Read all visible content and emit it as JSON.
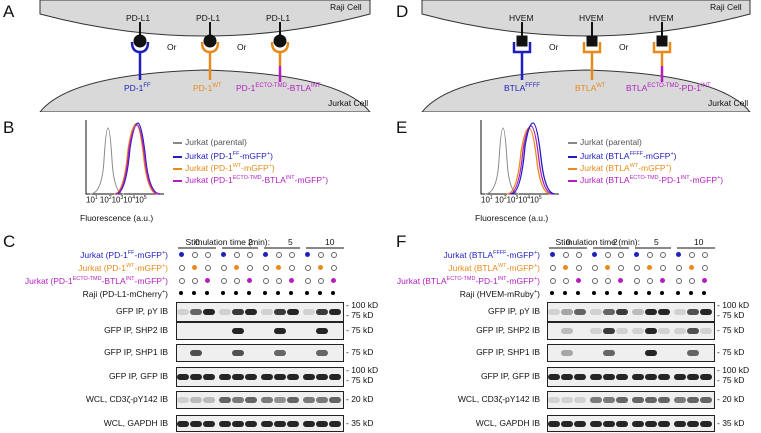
{
  "panels": {
    "A": "A",
    "B": "B",
    "C": "C",
    "D": "D",
    "E": "E",
    "F": "F"
  },
  "schematic_left": {
    "top_cell": "Raji Cell",
    "bottom_cell": "Jurkat Cell",
    "ligands": [
      "PD-L1",
      "PD-L1",
      "PD-L1"
    ],
    "or": "Or",
    "receptors": [
      {
        "base": "PD-1",
        "sup": "FF",
        "tail": "",
        "tailsup": "",
        "color": "#1f1fbf"
      },
      {
        "base": "PD-1",
        "sup": "WT",
        "tail": "",
        "tailsup": "",
        "color": "#e88a1a"
      },
      {
        "base": "PD-1",
        "sup": "ECTO-TMD",
        "tail": "-BTLA",
        "tailsup": "INT",
        "color": "#b21fbf"
      }
    ]
  },
  "schematic_right": {
    "top_cell": "Raji Cell",
    "bottom_cell": "Jurkat Cell",
    "ligands": [
      "HVEM",
      "HVEM",
      "HVEM"
    ],
    "or": "Or",
    "receptors": [
      {
        "base": "BTLA",
        "sup": "FFFF",
        "tail": "",
        "tailsup": "",
        "color": "#1f1fbf"
      },
      {
        "base": "BTLA",
        "sup": "WT",
        "tail": "",
        "tailsup": "",
        "color": "#e88a1a"
      },
      {
        "base": "BTLA",
        "sup": "ECTO-TMD",
        "tail": "-PD-1",
        "tailsup": "INT",
        "color": "#b21fbf"
      }
    ]
  },
  "flow_left": {
    "xlabel": "Fluorescence (a.u.)",
    "ticks": [
      "10",
      "1",
      "10",
      "2",
      "10",
      "3",
      "10",
      "4",
      "10",
      "5"
    ],
    "legend": [
      {
        "text": "Jurkat (parental)",
        "color": "#888888"
      },
      {
        "text": "Jurkat (PD-1FF-mGFP+)",
        "color": "#1f1fbf"
      },
      {
        "text": "Jurkat (PD-1WT-mGFP+)",
        "color": "#e88a1a"
      },
      {
        "text": "Jurkat (PD-1ECTO-TMD-BTLAINT-mGFP+)",
        "color": "#b21fbf"
      }
    ]
  },
  "flow_right": {
    "xlabel": "Fluorescence (a.u.)",
    "legend": [
      {
        "text": "Jurkat (parental)",
        "color": "#888888"
      },
      {
        "text": "Jurkat (BTLAFFFF-mGFP+)",
        "color": "#1f1fbf"
      },
      {
        "text": "Jurkat (BTLAWT-mGFP+)",
        "color": "#e88a1a"
      },
      {
        "text": "Jurkat (BTLAECTO-TMD-PD-1INT-mGFP+)",
        "color": "#b21fbf"
      }
    ]
  },
  "blot_left": {
    "stim_label": "Stimulation time (min):",
    "times": [
      "0",
      "2",
      "5",
      "10"
    ],
    "conditions": [
      {
        "text": "Jurkat (PD-1FF-mGFP+)",
        "color": "#1f1fbf"
      },
      {
        "text": "Jurkat (PD-1WT-mGFP+)",
        "color": "#e88a1a"
      },
      {
        "text": "Jurkat (PD-1ECTO-TMD-BTLAINT-mGFP+)",
        "color": "#b21fbf"
      },
      {
        "text": "Raji (PD-L1-mCherry+)",
        "color": "#111111"
      }
    ],
    "rows": [
      {
        "label": "GFP IP, pY IB",
        "mw": [
          "100 kD",
          "75 kD"
        ]
      },
      {
        "label": "GFP IP, SHP2 IB",
        "mw": [
          "75 kD"
        ]
      },
      {
        "label": "GFP IP, SHP1 IB",
        "mw": [
          "75 kD"
        ]
      },
      {
        "label": "GFP IP, GFP IB",
        "mw": [
          "100 kD",
          "75 kD"
        ]
      },
      {
        "label": "WCL, CD3ζ-pY142 IB",
        "mw": [
          "20 kD"
        ]
      },
      {
        "label": "WCL, GAPDH IB",
        "mw": [
          "35 kD"
        ]
      }
    ]
  },
  "blot_right": {
    "stim_label": "Stimulation time (min):",
    "times": [
      "0",
      "2",
      "5",
      "10"
    ],
    "conditions": [
      {
        "text": "Jurkat (BTLAFFFF-mGFP+)",
        "color": "#1f1fbf"
      },
      {
        "text": "Jurkat (BTLAWT-mGFP+)",
        "color": "#e88a1a"
      },
      {
        "text": "Jurkat (BTLAECTO-TMD-PD-1INT-mGFP+)",
        "color": "#b21fbf"
      },
      {
        "text": "Raji (HVEM-mRuby+)",
        "color": "#111111"
      }
    ],
    "rows": [
      {
        "label": "GFP IP, pY IB",
        "mw": [
          "100 kD",
          "75 kD"
        ]
      },
      {
        "label": "GFP IP, SHP2 IB",
        "mw": [
          "75 kD"
        ]
      },
      {
        "label": "GFP IP, SHP1 IB",
        "mw": [
          "75 kD"
        ]
      },
      {
        "label": "GFP IP, GFP IB",
        "mw": [
          "100 kD",
          "75 kD"
        ]
      },
      {
        "label": "WCL, CD3ζ-pY142 IB",
        "mw": [
          "20 kD"
        ]
      },
      {
        "label": "WCL, GAPDH IB",
        "mw": [
          "35 kD"
        ]
      }
    ]
  }
}
